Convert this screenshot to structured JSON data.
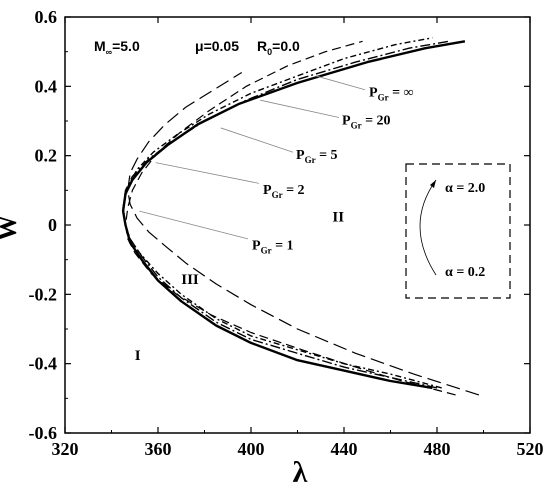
{
  "chart_data": {
    "type": "line",
    "xlabel": "λ",
    "ylabel": "W",
    "xlim": [
      320,
      520
    ],
    "ylim": [
      -0.6,
      0.6
    ],
    "x_ticks": [
      "320",
      "360",
      "400",
      "440",
      "480",
      "520"
    ],
    "y_ticks": [
      "-0.6",
      "-0.4",
      "-0.2",
      "0",
      "0.2",
      "0.4",
      "0.6"
    ],
    "params": {
      "mach": "M",
      "mach_sub": "∞",
      "mach_val": "=5.0",
      "mu": "μ=0.05",
      "r0": "R",
      "r0_sub": "0",
      "r0_val": "=0.0"
    },
    "series": [
      {
        "name": "PGr = ∞",
        "style": "solid",
        "x": [
          478,
          460,
          440,
          420,
          400,
          385,
          370,
          360,
          353,
          348,
          346,
          345,
          346,
          349,
          355,
          364,
          377,
          395,
          420,
          450,
          475,
          492
        ],
        "y": [
          -0.47,
          -0.45,
          -0.42,
          -0.39,
          -0.34,
          -0.29,
          -0.22,
          -0.16,
          -0.1,
          -0.05,
          0.0,
          0.04,
          0.09,
          0.13,
          0.18,
          0.23,
          0.29,
          0.35,
          0.41,
          0.47,
          0.51,
          0.53
        ]
      },
      {
        "name": "PGr = 20",
        "style": "dashdot",
        "x": [
          480,
          460,
          440,
          420,
          400,
          385,
          370,
          360,
          353,
          348,
          346,
          345,
          346,
          349,
          356,
          366,
          380,
          398,
          420,
          445,
          468,
          485
        ],
        "y": [
          -0.47,
          -0.44,
          -0.41,
          -0.37,
          -0.33,
          -0.28,
          -0.21,
          -0.15,
          -0.09,
          -0.04,
          0.0,
          0.05,
          0.1,
          0.14,
          0.19,
          0.24,
          0.3,
          0.36,
          0.42,
          0.47,
          0.51,
          0.53
        ]
      },
      {
        "name": "PGr = 5",
        "style": "dashdot2",
        "x": [
          482,
          460,
          440,
          420,
          400,
          385,
          370,
          360,
          352,
          348,
          346,
          345,
          347,
          351,
          358,
          368,
          382,
          400,
          420,
          440,
          462,
          478
        ],
        "y": [
          -0.47,
          -0.43,
          -0.4,
          -0.36,
          -0.32,
          -0.27,
          -0.2,
          -0.14,
          -0.08,
          -0.04,
          0.0,
          0.05,
          0.11,
          0.16,
          0.21,
          0.26,
          0.32,
          0.38,
          0.43,
          0.48,
          0.52,
          0.54
        ]
      },
      {
        "name": "PGr = 2",
        "style": "dashed",
        "x": [
          488,
          465,
          445,
          422,
          400,
          383,
          368,
          357,
          350,
          347,
          346,
          347,
          349,
          353,
          360,
          370,
          382,
          398,
          416,
          432,
          448
        ],
        "y": [
          -0.49,
          -0.45,
          -0.41,
          -0.36,
          -0.31,
          -0.26,
          -0.2,
          -0.14,
          -0.08,
          -0.04,
          0.0,
          0.05,
          0.1,
          0.15,
          0.21,
          0.27,
          0.33,
          0.4,
          0.46,
          0.5,
          0.53
        ]
      },
      {
        "name": "PGr = 1",
        "style": "longdash",
        "x": [
          498,
          470,
          445,
          420,
          400,
          385,
          372,
          363,
          356,
          351,
          348,
          347,
          348,
          351,
          356,
          363,
          372,
          384,
          396
        ],
        "y": [
          -0.49,
          -0.43,
          -0.37,
          -0.3,
          -0.23,
          -0.17,
          -0.11,
          -0.06,
          -0.02,
          0.02,
          0.06,
          0.1,
          0.15,
          0.19,
          0.24,
          0.29,
          0.34,
          0.39,
          0.44
        ]
      }
    ],
    "annotations": [
      {
        "label": "P",
        "sub": "Gr",
        "value": " = ∞",
        "text_at": [
          369,
          0.37
        ],
        "line_from": [
          365,
          0.39
        ],
        "line_to": [
          428,
          0.43
        ]
      },
      {
        "label": "P",
        "sub": "Gr",
        "value": " = 20",
        "text_at": [
          342,
          0.29
        ],
        "line_from": [
          339,
          0.31
        ],
        "line_to": [
          404,
          0.36
        ]
      },
      {
        "label": "P",
        "sub": "Gr",
        "value": " = 5",
        "text_at": [
          296,
          0.19
        ],
        "line_from": [
          293,
          0.21
        ],
        "line_to": [
          387,
          0.28
        ]
      },
      {
        "label": "P",
        "sub": "Gr",
        "value": " = 2",
        "text_at": [
          263,
          0.09
        ],
        "line_from": [
          259,
          0.12
        ],
        "line_to": [
          359,
          0.18
        ]
      },
      {
        "label": "P",
        "sub": "Gr",
        "value": " = 1",
        "text_at": [
          252,
          -0.07
        ],
        "line_from": [
          248,
          -0.04
        ],
        "line_to": [
          352,
          0.04
        ]
      }
    ],
    "regions": [
      {
        "label": "I",
        "at": [
          350,
          -0.39
        ]
      },
      {
        "label": "II",
        "at": [
          435,
          0.01
        ]
      },
      {
        "label": "III",
        "at": [
          370,
          -0.17
        ]
      }
    ],
    "inset": {
      "top": "α = 2.0",
      "bottom": "α = 0.2"
    }
  }
}
